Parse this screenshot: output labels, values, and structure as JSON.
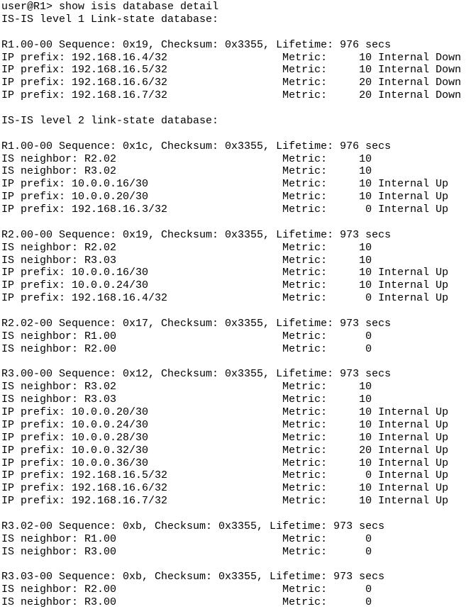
{
  "colors": {
    "background": "#ffffff",
    "text": "#000000"
  },
  "terminal": {
    "prompt": "user@R1>",
    "command": "show isis database detail",
    "labels": {
      "sequence": "Sequence:",
      "checksum": "Checksum:",
      "lifetime": "Lifetime:",
      "secs": "secs",
      "metric": "Metric:"
    },
    "layout": {
      "label_col_width": 44,
      "metric_field_width": 7
    },
    "databases": [
      {
        "title": "IS-IS level 1 Link-state database:",
        "lsps": [
          {
            "id": "R1.00-00",
            "sequence": "0x19",
            "checksum": "0x3355",
            "lifetime": "976",
            "rows": [
              {
                "label": "IP prefix",
                "value": "192.168.16.4/32",
                "metric": "10",
                "qualifier": "Internal Down"
              },
              {
                "label": "IP prefix",
                "value": "192.168.16.5/32",
                "metric": "10",
                "qualifier": "Internal Down"
              },
              {
                "label": "IP prefix",
                "value": "192.168.16.6/32",
                "metric": "20",
                "qualifier": "Internal Down"
              },
              {
                "label": "IP prefix",
                "value": "192.168.16.7/32",
                "metric": "20",
                "qualifier": "Internal Down"
              }
            ]
          }
        ]
      },
      {
        "title": "IS-IS level 2 link-state database:",
        "lsps": [
          {
            "id": "R1.00-00",
            "sequence": "0x1c",
            "checksum": "0x3355",
            "lifetime": "976",
            "rows": [
              {
                "label": "IS neighbor",
                "value": "R2.02",
                "metric": "10",
                "qualifier": ""
              },
              {
                "label": "IS neighbor",
                "value": "R3.02",
                "metric": "10",
                "qualifier": ""
              },
              {
                "label": "IP prefix",
                "value": "10.0.0.16/30",
                "metric": "10",
                "qualifier": "Internal Up"
              },
              {
                "label": "IP prefix",
                "value": "10.0.0.20/30",
                "metric": "10",
                "qualifier": "Internal Up"
              },
              {
                "label": "IP prefix",
                "value": "192.168.16.3/32",
                "metric": "0",
                "qualifier": "Internal Up"
              }
            ]
          },
          {
            "id": "R2.00-00",
            "sequence": "0x19",
            "checksum": "0x3355",
            "lifetime": "973",
            "rows": [
              {
                "label": "IS neighbor",
                "value": "R2.02",
                "metric": "10",
                "qualifier": ""
              },
              {
                "label": "IS neighbor",
                "value": "R3.03",
                "metric": "10",
                "qualifier": ""
              },
              {
                "label": "IP prefix",
                "value": "10.0.0.16/30",
                "metric": "10",
                "qualifier": "Internal Up"
              },
              {
                "label": "IP prefix",
                "value": "10.0.0.24/30",
                "metric": "10",
                "qualifier": "Internal Up"
              },
              {
                "label": "IP prefix",
                "value": "192.168.16.4/32",
                "metric": "0",
                "qualifier": "Internal Up"
              }
            ]
          },
          {
            "id": "R2.02-00",
            "sequence": "0x17",
            "checksum": "0x3355",
            "lifetime": "973",
            "rows": [
              {
                "label": "IS neighbor",
                "value": "R1.00",
                "metric": "0",
                "qualifier": ""
              },
              {
                "label": "IS neighbor",
                "value": "R2.00",
                "metric": "0",
                "qualifier": ""
              }
            ]
          },
          {
            "id": "R3.00-00",
            "sequence": "0x12",
            "checksum": "0x3355",
            "lifetime": "973",
            "rows": [
              {
                "label": "IS neighbor",
                "value": "R3.02",
                "metric": "10",
                "qualifier": ""
              },
              {
                "label": "IS neighbor",
                "value": "R3.03",
                "metric": "10",
                "qualifier": ""
              },
              {
                "label": "IP prefix",
                "value": "10.0.0.20/30",
                "metric": "10",
                "qualifier": "Internal Up"
              },
              {
                "label": "IP prefix",
                "value": "10.0.0.24/30",
                "metric": "10",
                "qualifier": "Internal Up"
              },
              {
                "label": "IP prefix",
                "value": "10.0.0.28/30",
                "metric": "10",
                "qualifier": "Internal Up"
              },
              {
                "label": "IP prefix",
                "value": "10.0.0.32/30",
                "metric": "20",
                "qualifier": "Internal Up"
              },
              {
                "label": "IP prefix",
                "value": "10.0.0.36/30",
                "metric": "10",
                "qualifier": "Internal Up"
              },
              {
                "label": "IP prefix",
                "value": "192.168.16.5/32",
                "metric": "0",
                "qualifier": "Internal Up"
              },
              {
                "label": "IP prefix",
                "value": "192.168.16.6/32",
                "metric": "10",
                "qualifier": "Internal Up"
              },
              {
                "label": "IP prefix",
                "value": "192.168.16.7/32",
                "metric": "10",
                "qualifier": "Internal Up"
              }
            ]
          },
          {
            "id": "R3.02-00",
            "sequence": "0xb",
            "checksum": "0x3355",
            "lifetime": "973",
            "rows": [
              {
                "label": "IS neighbor",
                "value": "R1.00",
                "metric": "0",
                "qualifier": ""
              },
              {
                "label": "IS neighbor",
                "value": "R3.00",
                "metric": "0",
                "qualifier": ""
              }
            ]
          },
          {
            "id": "R3.03-00",
            "sequence": "0xb",
            "checksum": "0x3355",
            "lifetime": "973",
            "rows": [
              {
                "label": "IS neighbor",
                "value": "R2.00",
                "metric": "0",
                "qualifier": ""
              },
              {
                "label": "IS neighbor",
                "value": "R3.00",
                "metric": "0",
                "qualifier": ""
              }
            ]
          }
        ]
      }
    ]
  }
}
